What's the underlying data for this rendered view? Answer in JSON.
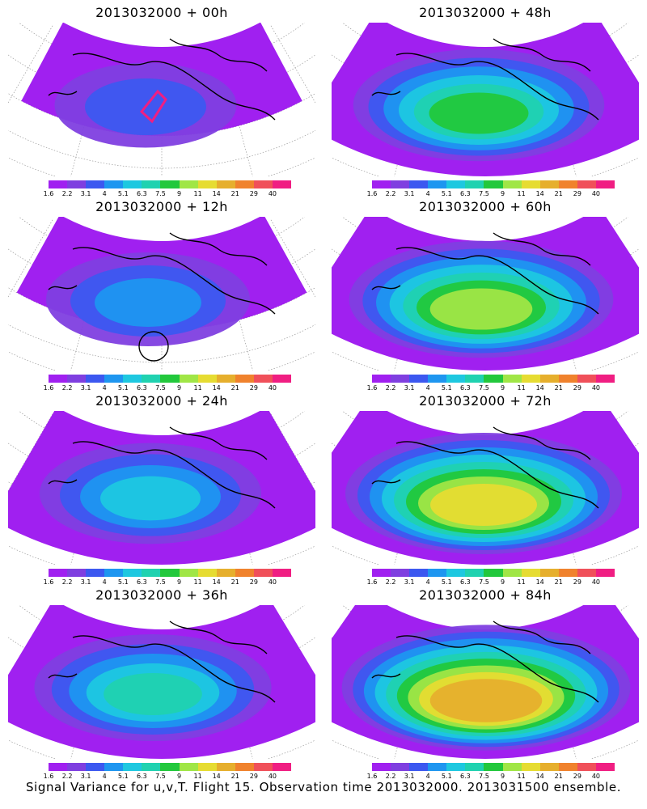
{
  "caption": "Signal Variance for u,v,T. Flight 15. Observation time 2013032000. 2013031500 ensemble.",
  "colorbar": {
    "labels": [
      "1.6",
      "2.2",
      "3.1",
      "4",
      "5.1",
      "6.3",
      "7.5",
      "9",
      "11",
      "14",
      "21",
      "29",
      "40"
    ],
    "colors": [
      "#a020f0",
      "#7f3fe0",
      "#3c58f0",
      "#1e96f0",
      "#1ec8e0",
      "#20d2b0",
      "#22c83c",
      "#a0e646",
      "#e6dc32",
      "#e6af2d",
      "#f0822d",
      "#f0505a",
      "#f01e82"
    ]
  },
  "panels": [
    {
      "title": "2013032000 + 00h",
      "level": 0,
      "marker": "rect"
    },
    {
      "title": "2013032000 + 48h",
      "level": 4
    },
    {
      "title": "2013032000 + 12h",
      "level": 1,
      "marker": "circle"
    },
    {
      "title": "2013032000 + 60h",
      "level": 5
    },
    {
      "title": "2013032000 + 24h",
      "level": 2
    },
    {
      "title": "2013032000 + 72h",
      "level": 6
    },
    {
      "title": "2013032000 + 36h",
      "level": 3
    },
    {
      "title": "2013032000 + 84h",
      "level": 7
    }
  ]
}
